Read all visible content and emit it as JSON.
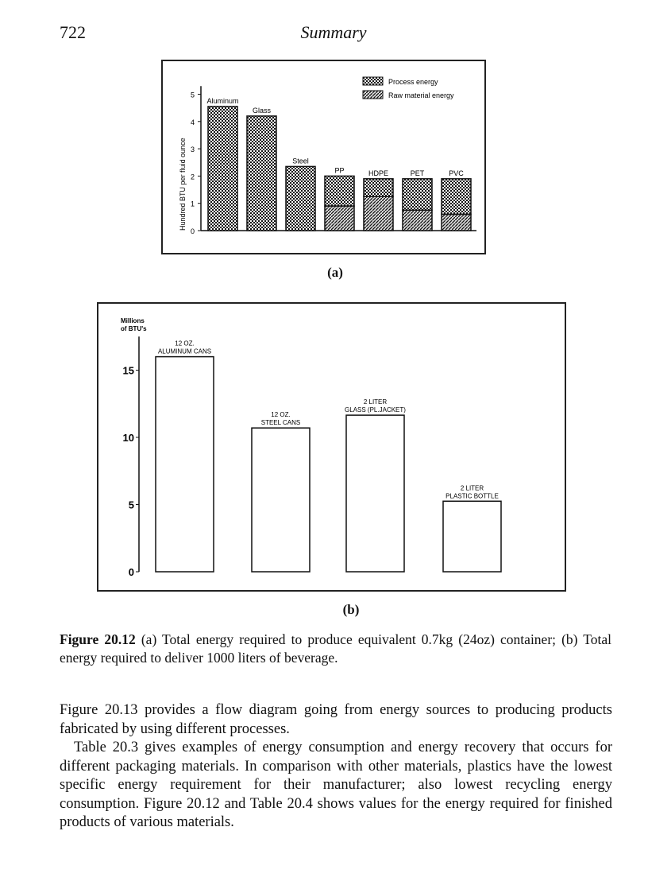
{
  "header": {
    "page_number": "722",
    "running_title": "Summary"
  },
  "figure_a": {
    "label": "(a)"
  },
  "figure_b": {
    "label": "(b)"
  },
  "caption": {
    "figure_id": "Figure 20.12",
    "text": "(a) Total energy required to produce equivalent 0.7kg (24oz) container; (b) Total energy required to deliver 1000 liters of beverage."
  },
  "body": {
    "paragraphs": [
      "Figure 20.13 provides a flow diagram going from energy sources to producing products fabricated by using different processes.",
      "Table 20.3 gives examples of energy consumption and energy recovery that occurs for different packaging materials. In comparison with other materials, plastics have the lowest specific energy requirement for their manufacturer; also lowest recycling energy consumption. Figure 20.12 and Table 20.4 shows values for the energy required for finished products of various materials."
    ]
  },
  "chart_data": [
    {
      "type": "bar",
      "stacked": true,
      "title": "",
      "xlabel": "",
      "ylabel": "Hundred BTU per fluid ounce",
      "ylim": [
        0,
        5
      ],
      "yticks": [
        "0",
        "1",
        "2",
        "3",
        "4",
        "5"
      ],
      "categories": [
        "Aluminum",
        "Glass",
        "Steel",
        "PP",
        "HDPE",
        "PET",
        "PVC"
      ],
      "series": [
        {
          "name": "Raw material energy",
          "values": [
            0,
            0,
            0,
            0.9,
            1.25,
            0.75,
            0.6
          ]
        },
        {
          "name": "Process energy",
          "values": [
            4.55,
            4.2,
            2.35,
            1.1,
            0.65,
            1.15,
            1.3
          ]
        }
      ],
      "totals": [
        4.55,
        4.2,
        2.35,
        2.0,
        1.9,
        1.9,
        1.9
      ],
      "legend": "top-right"
    },
    {
      "type": "bar",
      "title": "",
      "ylabel": "Millions of BTU's",
      "ylim": [
        0,
        17
      ],
      "yticks": [
        "0",
        "5",
        "10",
        "15"
      ],
      "categories": [
        [
          "12 OZ.",
          "ALUMINUM CANS"
        ],
        [
          "12 OZ.",
          "STEEL CANS"
        ],
        [
          "2 LITER",
          "GLASS (PL.JACKET)"
        ],
        [
          "2 LITER",
          "PLASTIC BOTTLE"
        ]
      ],
      "values": [
        16.0,
        10.7,
        11.65,
        5.25
      ]
    }
  ]
}
